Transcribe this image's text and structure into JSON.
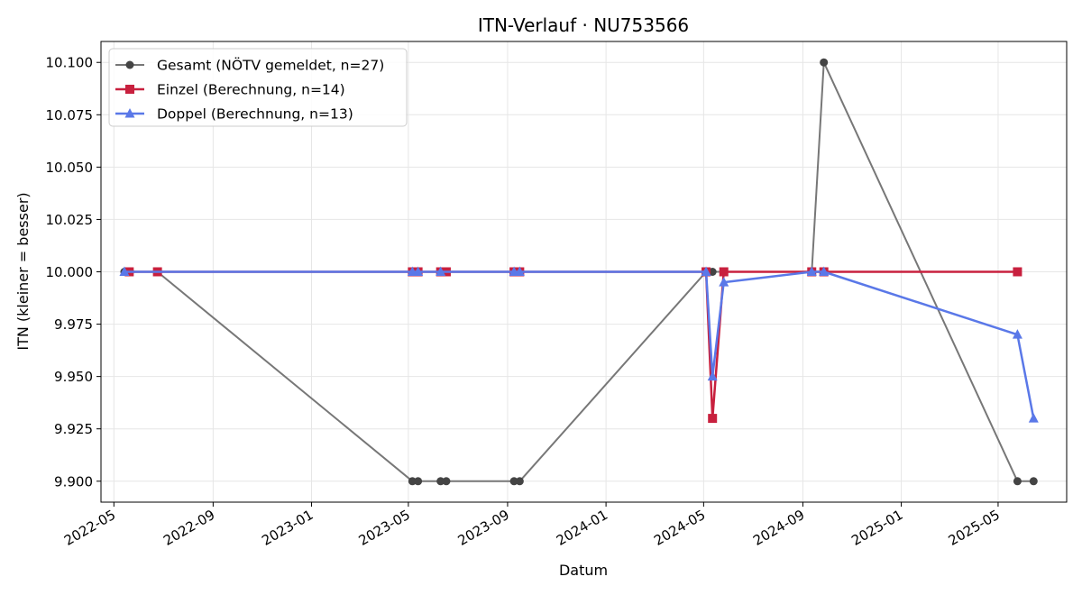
{
  "chart_data": {
    "type": "line",
    "title": "ITN-Verlauf · NU753566",
    "xlabel": "Datum",
    "ylabel": "ITN  (kleiner = besser)",
    "ylim": [
      9.89,
      10.11
    ],
    "xlim": [
      "2022-04-15",
      "2025-07-25"
    ],
    "grid": true,
    "legend_position": "top-left",
    "x_ticks": [
      "2022-05",
      "2022-09",
      "2023-01",
      "2023-05",
      "2023-09",
      "2024-01",
      "2024-05",
      "2024-09",
      "2025-01",
      "2025-05"
    ],
    "y_ticks": [
      "9.900",
      "9.925",
      "9.950",
      "9.975",
      "10.000",
      "10.025",
      "10.050",
      "10.075",
      "10.100"
    ],
    "series": [
      {
        "name": "Gesamt (NÖTV gemeldet, n=27)",
        "color": "#777777",
        "marker_color": "#444444",
        "marker": "circle",
        "points": [
          [
            "2022-05-14",
            10.0
          ],
          [
            "2022-05-21",
            10.0
          ],
          [
            "2022-06-24",
            10.0
          ],
          [
            "2023-05-06",
            9.9
          ],
          [
            "2023-05-13",
            9.9
          ],
          [
            "2023-06-10",
            9.9
          ],
          [
            "2023-06-17",
            9.9
          ],
          [
            "2023-09-09",
            9.9
          ],
          [
            "2023-09-16",
            9.9
          ],
          [
            "2024-05-04",
            10.0
          ],
          [
            "2024-05-12",
            10.0
          ],
          [
            "2024-09-12",
            10.0
          ],
          [
            "2024-09-27",
            10.1
          ],
          [
            "2025-05-25",
            9.9
          ],
          [
            "2025-06-14",
            9.9
          ]
        ]
      },
      {
        "name": "Einzel (Berechnung, n=14)",
        "color": "#c8203e",
        "marker_color": "#c8203e",
        "marker": "square",
        "points": [
          [
            "2022-05-20",
            10.0
          ],
          [
            "2022-06-24",
            10.0
          ],
          [
            "2023-05-06",
            10.0
          ],
          [
            "2023-05-13",
            10.0
          ],
          [
            "2023-06-10",
            10.0
          ],
          [
            "2023-06-17",
            10.0
          ],
          [
            "2023-09-09",
            10.0
          ],
          [
            "2023-09-16",
            10.0
          ],
          [
            "2024-05-04",
            10.0
          ],
          [
            "2024-05-12",
            9.93
          ],
          [
            "2024-05-26",
            10.0
          ],
          [
            "2024-09-12",
            10.0
          ],
          [
            "2024-09-27",
            10.0
          ],
          [
            "2025-05-25",
            10.0
          ]
        ]
      },
      {
        "name": "Doppel (Berechnung, n=13)",
        "color": "#5a78e8",
        "marker_color": "#5a78e8",
        "marker": "triangle",
        "points": [
          [
            "2022-05-14",
            10.0
          ],
          [
            "2023-05-06",
            10.0
          ],
          [
            "2023-05-13",
            10.0
          ],
          [
            "2023-06-10",
            10.0
          ],
          [
            "2023-09-09",
            10.0
          ],
          [
            "2023-09-16",
            10.0
          ],
          [
            "2024-05-04",
            10.0
          ],
          [
            "2024-05-12",
            9.95
          ],
          [
            "2024-05-26",
            9.995
          ],
          [
            "2024-09-12",
            10.0
          ],
          [
            "2024-09-27",
            10.0
          ],
          [
            "2025-05-25",
            9.97
          ],
          [
            "2025-06-14",
            9.93
          ]
        ]
      }
    ]
  }
}
